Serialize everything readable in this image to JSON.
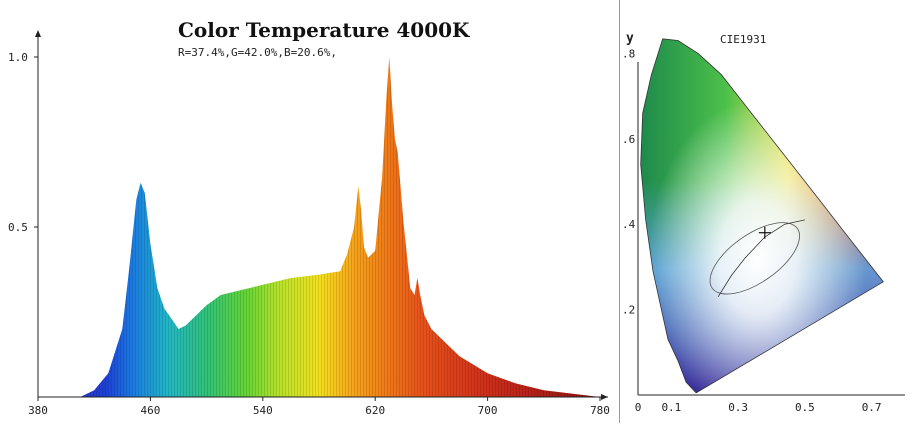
{
  "chart_data": [
    {
      "type": "area",
      "title": "Color Temperature 4000K",
      "subtitle": "R=37.4%,G=42.0%,B=20.6%,",
      "xlim": [
        380,
        780
      ],
      "ylim": [
        0,
        1.05
      ],
      "x_ticks": [
        "380",
        "460",
        "540",
        "620",
        "700",
        "780"
      ],
      "y_ticks": [
        "0.5",
        "1.0"
      ],
      "x": [
        380,
        410,
        420,
        430,
        440,
        445,
        450,
        453,
        456,
        460,
        465,
        470,
        475,
        480,
        485,
        490,
        500,
        510,
        520,
        540,
        560,
        580,
        595,
        600,
        605,
        608,
        610,
        612,
        615,
        620,
        625,
        628,
        630,
        632,
        634,
        636,
        640,
        645,
        648,
        650,
        652,
        655,
        660,
        670,
        680,
        700,
        720,
        740,
        760,
        780
      ],
      "values": [
        0.0,
        0.0,
        0.02,
        0.07,
        0.2,
        0.38,
        0.58,
        0.63,
        0.6,
        0.45,
        0.32,
        0.26,
        0.23,
        0.2,
        0.21,
        0.23,
        0.27,
        0.3,
        0.31,
        0.33,
        0.35,
        0.36,
        0.37,
        0.42,
        0.5,
        0.62,
        0.55,
        0.44,
        0.41,
        0.43,
        0.65,
        0.88,
        1.0,
        0.86,
        0.76,
        0.72,
        0.52,
        0.32,
        0.3,
        0.35,
        0.3,
        0.24,
        0.2,
        0.16,
        0.12,
        0.07,
        0.04,
        0.02,
        0.01,
        0.0
      ],
      "grid": false
    },
    {
      "type": "scatter",
      "title": "CIE1931",
      "ylabel": "y",
      "xlim": [
        0,
        0.8
      ],
      "ylim": [
        0,
        0.85
      ],
      "x_ticks": [
        "0",
        "0.1",
        "0.3",
        "0.5",
        "0.7"
      ],
      "y_ticks": [
        ".2",
        ".4",
        ".6",
        ".8"
      ],
      "series": [
        {
          "x": [
            0.38
          ],
          "values": [
            0.38
          ]
        }
      ]
    }
  ]
}
